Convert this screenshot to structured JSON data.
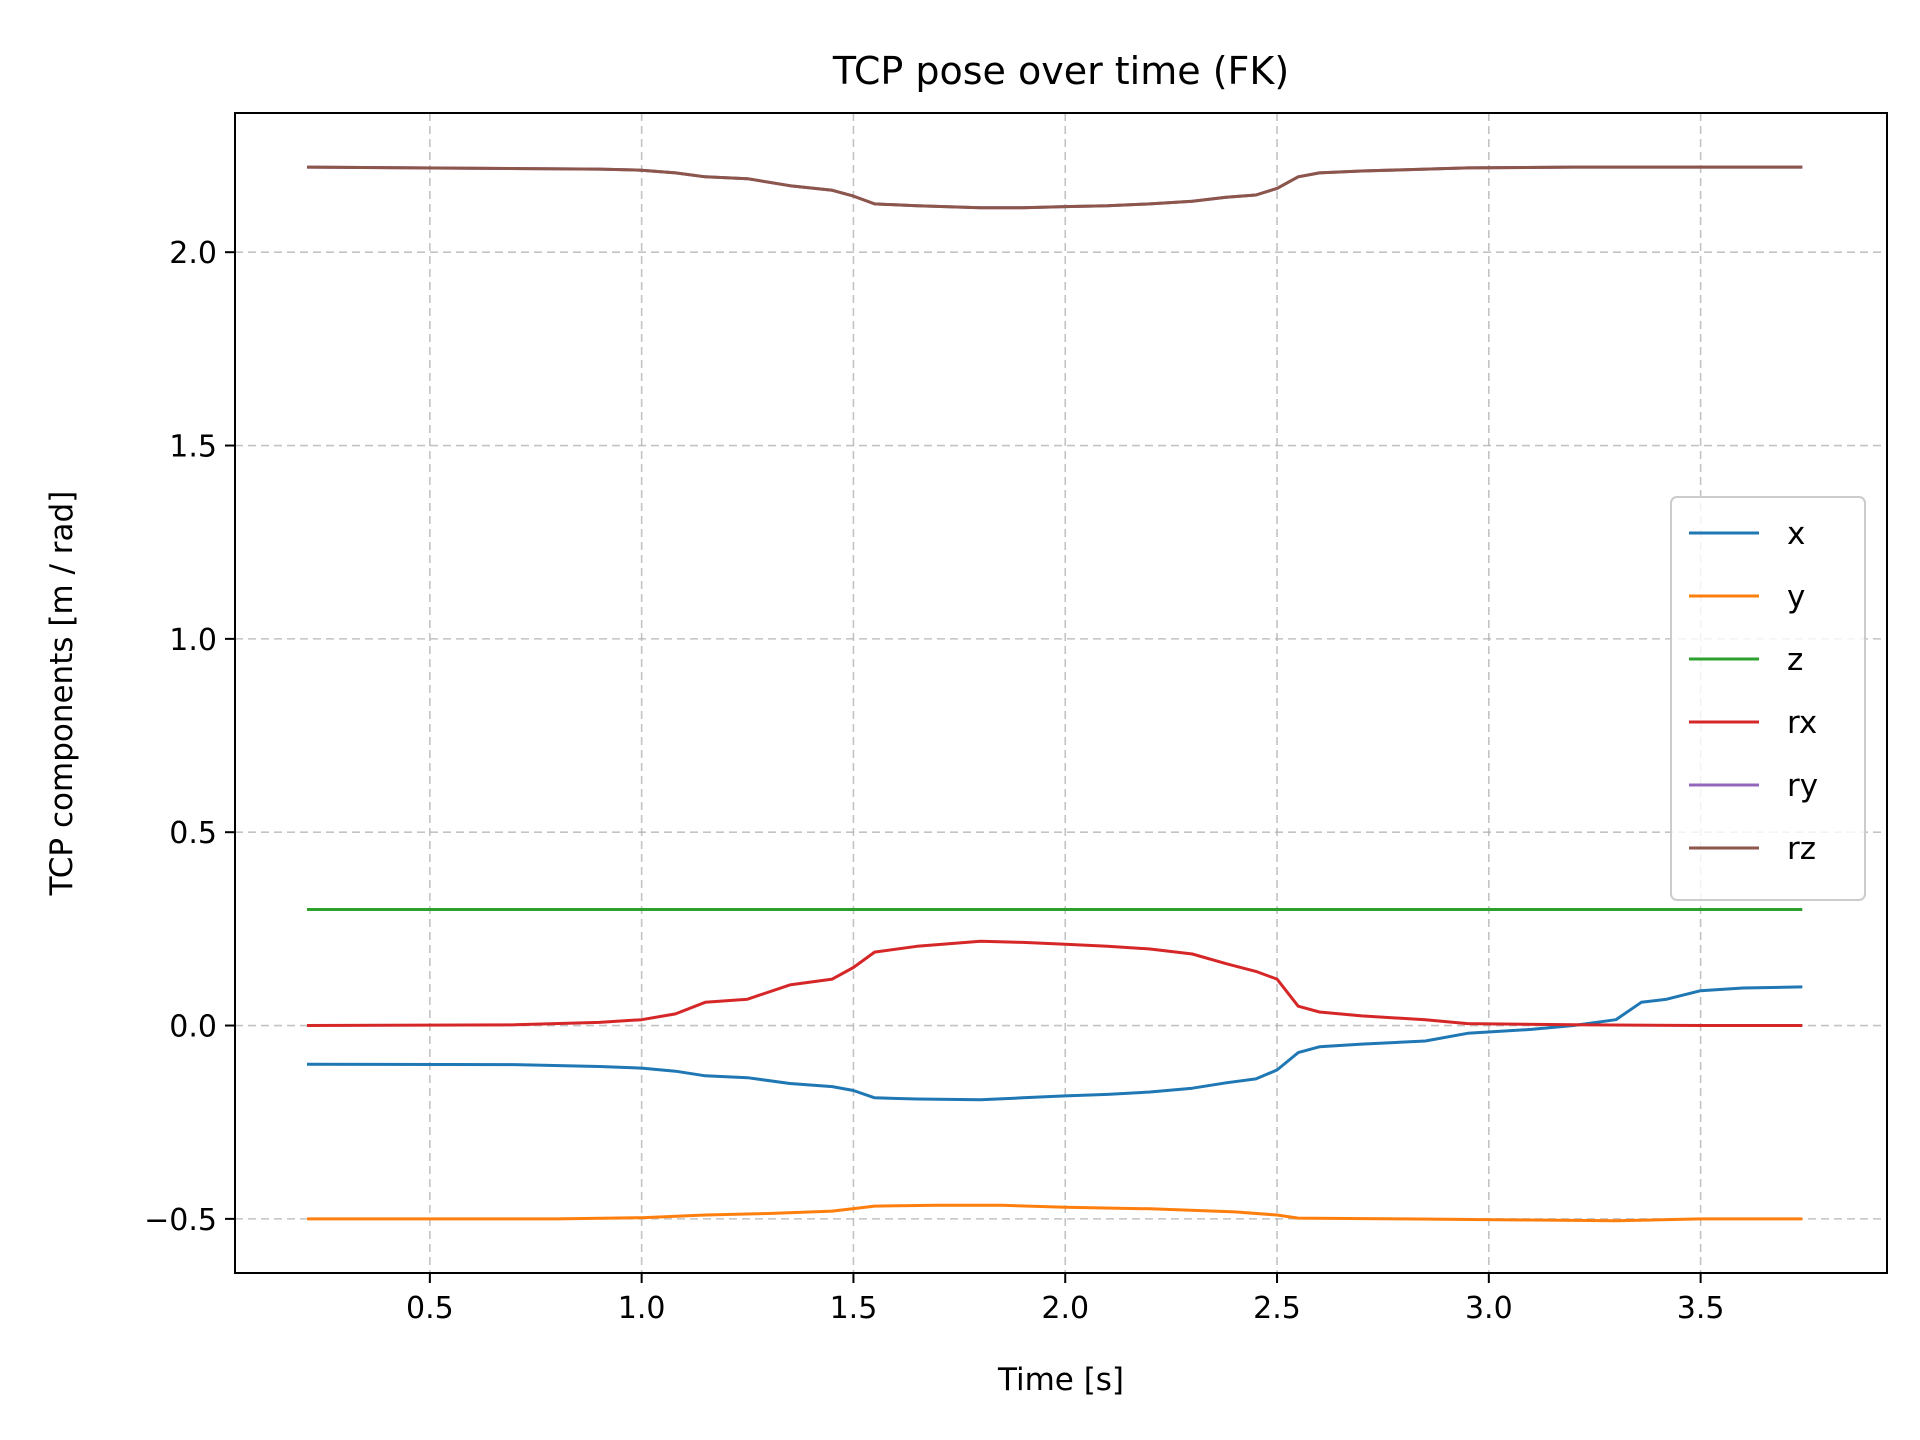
{
  "chart_data": {
    "type": "line",
    "title": "TCP pose over time (FK)",
    "xlabel": "Time [s]",
    "ylabel": "TCP components [m / rad]",
    "xlim": [
      0.04,
      3.94
    ],
    "ylim": [
      -0.64,
      2.36
    ],
    "xticks": [
      0.5,
      1.0,
      1.5,
      2.0,
      2.5,
      3.0,
      3.5
    ],
    "xtick_labels": [
      "0.5",
      "1.0",
      "1.5",
      "2.0",
      "2.5",
      "3.0",
      "3.5"
    ],
    "yticks": [
      -0.5,
      0.0,
      0.5,
      1.0,
      1.5,
      2.0
    ],
    "ytick_labels": [
      "−0.5",
      "0.0",
      "0.5",
      "1.0",
      "1.5",
      "2.0"
    ],
    "grid": true,
    "legend_position": "center-right",
    "series": [
      {
        "name": "x",
        "color": "#1f77b4",
        "points": [
          [
            0.21,
            -0.1
          ],
          [
            0.7,
            -0.101
          ],
          [
            0.9,
            -0.106
          ],
          [
            1.0,
            -0.11
          ],
          [
            1.08,
            -0.118
          ],
          [
            1.15,
            -0.13
          ],
          [
            1.25,
            -0.135
          ],
          [
            1.35,
            -0.15
          ],
          [
            1.45,
            -0.158
          ],
          [
            1.5,
            -0.168
          ],
          [
            1.55,
            -0.187
          ],
          [
            1.65,
            -0.19
          ],
          [
            1.8,
            -0.192
          ],
          [
            1.9,
            -0.187
          ],
          [
            2.0,
            -0.182
          ],
          [
            2.1,
            -0.178
          ],
          [
            2.2,
            -0.172
          ],
          [
            2.3,
            -0.162
          ],
          [
            2.38,
            -0.148
          ],
          [
            2.45,
            -0.138
          ],
          [
            2.5,
            -0.115
          ],
          [
            2.55,
            -0.07
          ],
          [
            2.6,
            -0.055
          ],
          [
            2.7,
            -0.048
          ],
          [
            2.85,
            -0.04
          ],
          [
            2.95,
            -0.02
          ],
          [
            3.1,
            -0.01
          ],
          [
            3.2,
            0.0
          ],
          [
            3.3,
            0.015
          ],
          [
            3.36,
            0.06
          ],
          [
            3.42,
            0.068
          ],
          [
            3.5,
            0.09
          ],
          [
            3.6,
            0.097
          ],
          [
            3.74,
            0.1
          ]
        ]
      },
      {
        "name": "y",
        "color": "#ff7f0e",
        "points": [
          [
            0.21,
            -0.5
          ],
          [
            0.8,
            -0.5
          ],
          [
            1.0,
            -0.497
          ],
          [
            1.15,
            -0.49
          ],
          [
            1.3,
            -0.486
          ],
          [
            1.45,
            -0.48
          ],
          [
            1.55,
            -0.467
          ],
          [
            1.7,
            -0.465
          ],
          [
            1.85,
            -0.465
          ],
          [
            2.0,
            -0.47
          ],
          [
            2.2,
            -0.474
          ],
          [
            2.4,
            -0.482
          ],
          [
            2.5,
            -0.49
          ],
          [
            2.55,
            -0.498
          ],
          [
            2.8,
            -0.5
          ],
          [
            3.1,
            -0.503
          ],
          [
            3.3,
            -0.505
          ],
          [
            3.5,
            -0.5
          ],
          [
            3.74,
            -0.5
          ]
        ]
      },
      {
        "name": "z",
        "color": "#2ca02c",
        "points": [
          [
            0.21,
            0.3
          ],
          [
            3.74,
            0.3
          ]
        ]
      },
      {
        "name": "rx",
        "color": "#d62728",
        "points": [
          [
            0.21,
            0.0
          ],
          [
            0.7,
            0.002
          ],
          [
            0.9,
            0.008
          ],
          [
            1.0,
            0.015
          ],
          [
            1.08,
            0.03
          ],
          [
            1.15,
            0.06
          ],
          [
            1.25,
            0.068
          ],
          [
            1.35,
            0.105
          ],
          [
            1.45,
            0.12
          ],
          [
            1.5,
            0.15
          ],
          [
            1.55,
            0.19
          ],
          [
            1.65,
            0.205
          ],
          [
            1.8,
            0.218
          ],
          [
            1.9,
            0.215
          ],
          [
            2.0,
            0.21
          ],
          [
            2.1,
            0.205
          ],
          [
            2.2,
            0.198
          ],
          [
            2.3,
            0.185
          ],
          [
            2.38,
            0.16
          ],
          [
            2.45,
            0.14
          ],
          [
            2.5,
            0.12
          ],
          [
            2.55,
            0.05
          ],
          [
            2.6,
            0.035
          ],
          [
            2.7,
            0.025
          ],
          [
            2.85,
            0.015
          ],
          [
            2.95,
            0.005
          ],
          [
            3.2,
            0.002
          ],
          [
            3.5,
            0.0
          ],
          [
            3.74,
            0.0
          ]
        ]
      },
      {
        "name": "ry",
        "color": "#9467bd",
        "points": [
          [
            0.21,
            2.22
          ],
          [
            0.9,
            2.215
          ],
          [
            1.0,
            2.212
          ],
          [
            1.08,
            2.205
          ],
          [
            1.15,
            2.195
          ],
          [
            1.25,
            2.19
          ],
          [
            1.35,
            2.172
          ],
          [
            1.45,
            2.16
          ],
          [
            1.5,
            2.145
          ],
          [
            1.55,
            2.125
          ],
          [
            1.65,
            2.12
          ],
          [
            1.8,
            2.115
          ],
          [
            1.9,
            2.115
          ],
          [
            2.0,
            2.118
          ],
          [
            2.1,
            2.12
          ],
          [
            2.2,
            2.125
          ],
          [
            2.3,
            2.132
          ],
          [
            2.38,
            2.142
          ],
          [
            2.45,
            2.148
          ],
          [
            2.5,
            2.165
          ],
          [
            2.55,
            2.195
          ],
          [
            2.6,
            2.205
          ],
          [
            2.7,
            2.21
          ],
          [
            2.95,
            2.218
          ],
          [
            3.2,
            2.22
          ],
          [
            3.74,
            2.22
          ]
        ]
      },
      {
        "name": "rz",
        "color": "#8c564b",
        "points": [
          [
            0.21,
            2.22
          ],
          [
            0.9,
            2.215
          ],
          [
            1.0,
            2.212
          ],
          [
            1.08,
            2.205
          ],
          [
            1.15,
            2.195
          ],
          [
            1.25,
            2.19
          ],
          [
            1.35,
            2.172
          ],
          [
            1.45,
            2.16
          ],
          [
            1.5,
            2.145
          ],
          [
            1.55,
            2.125
          ],
          [
            1.65,
            2.12
          ],
          [
            1.8,
            2.115
          ],
          [
            1.9,
            2.115
          ],
          [
            2.0,
            2.118
          ],
          [
            2.1,
            2.12
          ],
          [
            2.2,
            2.125
          ],
          [
            2.3,
            2.132
          ],
          [
            2.38,
            2.142
          ],
          [
            2.45,
            2.148
          ],
          [
            2.5,
            2.165
          ],
          [
            2.55,
            2.195
          ],
          [
            2.6,
            2.205
          ],
          [
            2.7,
            2.21
          ],
          [
            2.95,
            2.218
          ],
          [
            3.2,
            2.22
          ],
          [
            3.74,
            2.22
          ]
        ]
      }
    ]
  }
}
